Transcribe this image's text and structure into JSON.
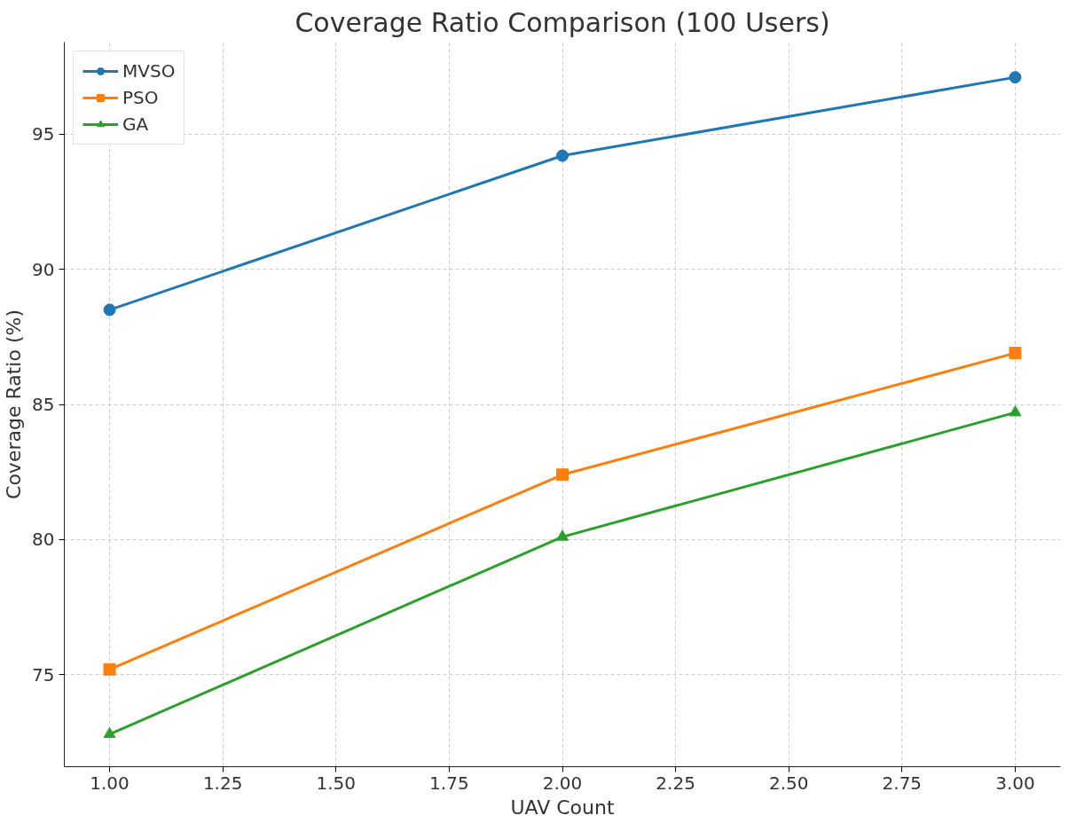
{
  "chart_data": {
    "type": "line",
    "title": "Coverage Ratio Comparison (100 Users)",
    "xlabel": "UAV Count",
    "ylabel": "Coverage Ratio (%)",
    "x": [
      1,
      2,
      3
    ],
    "series": [
      {
        "name": "MVSO",
        "color": "#1f77b4",
        "marker": "circle",
        "values": [
          88.5,
          94.2,
          97.1
        ]
      },
      {
        "name": "PSO",
        "color": "#ff7f0e",
        "marker": "square",
        "values": [
          75.2,
          82.4,
          86.9
        ]
      },
      {
        "name": "GA",
        "color": "#2ca02c",
        "marker": "triangle",
        "values": [
          72.8,
          80.1,
          84.7
        ]
      }
    ],
    "xlim": [
      0.9,
      3.1
    ],
    "ylim": [
      71.6,
      98.4
    ],
    "xticks": [
      {
        "value": 1,
        "label": "1.00"
      },
      {
        "value": 1.25,
        "label": "1.25"
      },
      {
        "value": 1.5,
        "label": "1.50"
      },
      {
        "value": 1.75,
        "label": "1.75"
      },
      {
        "value": 2,
        "label": "2.00"
      },
      {
        "value": 2.25,
        "label": "2.25"
      },
      {
        "value": 2.5,
        "label": "2.50"
      },
      {
        "value": 2.75,
        "label": "2.75"
      },
      {
        "value": 3,
        "label": "3.00"
      }
    ],
    "yticks": [
      75,
      80,
      85,
      90,
      95
    ],
    "grid": true,
    "legend": "top left",
    "line_style": "solid"
  }
}
